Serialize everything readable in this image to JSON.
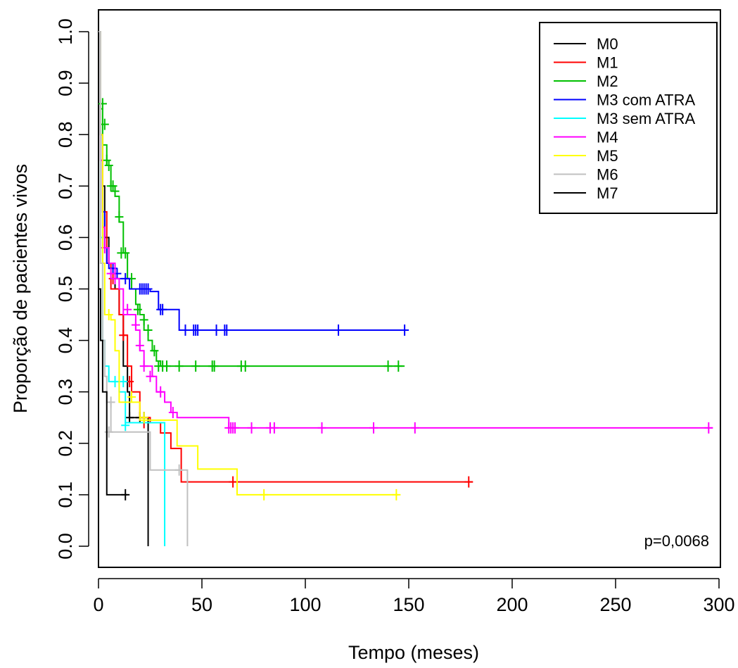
{
  "chart_data": {
    "type": "line",
    "subtype": "kaplan-meier",
    "title": "",
    "xlabel": "Tempo (meses)",
    "ylabel": "Proporção de pacientes vivos",
    "xlim": [
      0,
      300
    ],
    "ylim": [
      0,
      1
    ],
    "xticks": [
      "0",
      "50",
      "100",
      "150",
      "200",
      "250",
      "300"
    ],
    "xtick_values": [
      0,
      50,
      100,
      150,
      200,
      250,
      300
    ],
    "yticks": [
      "0.0",
      "0.1",
      "0.2",
      "0.3",
      "0.4",
      "0.5",
      "0.6",
      "0.7",
      "0.8",
      "0.9",
      "1.0"
    ],
    "ytick_values": [
      0,
      0.1,
      0.2,
      0.3,
      0.4,
      0.5,
      0.6,
      0.7,
      0.8,
      0.9,
      1.0
    ],
    "annotation": "p=0,0068",
    "legend_position": "top-right",
    "grid": false,
    "series": [
      {
        "name": "M0",
        "color": "#000000",
        "steps": [
          [
            0,
            1.0
          ],
          [
            1,
            0.8
          ],
          [
            2,
            0.7
          ],
          [
            3,
            0.6
          ],
          [
            5,
            0.55
          ],
          [
            8,
            0.5
          ],
          [
            10,
            0.45
          ],
          [
            12,
            0.35
          ],
          [
            14,
            0.3
          ],
          [
            15,
            0.25
          ],
          [
            24,
            0.25
          ],
          [
            24,
            0.0
          ]
        ],
        "censors": [
          [
            15,
            0.25
          ],
          [
            20,
            0.25
          ],
          [
            22,
            0.25
          ]
        ]
      },
      {
        "name": "M1",
        "color": "#ff0000",
        "steps": [
          [
            0,
            1.0
          ],
          [
            1,
            0.75
          ],
          [
            2,
            0.65
          ],
          [
            4,
            0.55
          ],
          [
            6,
            0.5
          ],
          [
            10,
            0.45
          ],
          [
            12,
            0.41
          ],
          [
            14,
            0.35
          ],
          [
            16,
            0.3
          ],
          [
            20,
            0.25
          ],
          [
            25,
            0.24
          ],
          [
            30,
            0.22
          ],
          [
            35,
            0.19
          ],
          [
            40,
            0.125
          ],
          [
            181,
            0.125
          ]
        ],
        "censors": [
          [
            7,
            0.52
          ],
          [
            12,
            0.41
          ],
          [
            15,
            0.32
          ],
          [
            22,
            0.24
          ],
          [
            65,
            0.125
          ],
          [
            179,
            0.125
          ]
        ]
      },
      {
        "name": "M2",
        "color": "#00c000",
        "steps": [
          [
            0,
            1.0
          ],
          [
            1,
            0.85
          ],
          [
            2,
            0.78
          ],
          [
            4,
            0.74
          ],
          [
            6,
            0.7
          ],
          [
            8,
            0.68
          ],
          [
            10,
            0.63
          ],
          [
            12,
            0.57
          ],
          [
            14,
            0.52
          ],
          [
            16,
            0.5
          ],
          [
            18,
            0.47
          ],
          [
            20,
            0.45
          ],
          [
            22,
            0.42
          ],
          [
            24,
            0.4
          ],
          [
            26,
            0.38
          ],
          [
            28,
            0.36
          ],
          [
            30,
            0.35
          ],
          [
            148,
            0.35
          ]
        ],
        "censors": [
          [
            2,
            0.86
          ],
          [
            3,
            0.82
          ],
          [
            4,
            0.75
          ],
          [
            5,
            0.74
          ],
          [
            6,
            0.7
          ],
          [
            7,
            0.7
          ],
          [
            8,
            0.69
          ],
          [
            10,
            0.64
          ],
          [
            11,
            0.57
          ],
          [
            13,
            0.57
          ],
          [
            16,
            0.52
          ],
          [
            19,
            0.46
          ],
          [
            22,
            0.44
          ],
          [
            24,
            0.42
          ],
          [
            27,
            0.38
          ],
          [
            29,
            0.35
          ],
          [
            31,
            0.35
          ],
          [
            33,
            0.35
          ],
          [
            39,
            0.35
          ],
          [
            47,
            0.35
          ],
          [
            55,
            0.35
          ],
          [
            56,
            0.35
          ],
          [
            69,
            0.35
          ],
          [
            71,
            0.35
          ],
          [
            140,
            0.35
          ],
          [
            145,
            0.35
          ]
        ]
      },
      {
        "name": "M3 com ATRA",
        "color": "#0000ff",
        "steps": [
          [
            0,
            1.0
          ],
          [
            1,
            0.8
          ],
          [
            2,
            0.65
          ],
          [
            3,
            0.58
          ],
          [
            4,
            0.55
          ],
          [
            5,
            0.54
          ],
          [
            8,
            0.52
          ],
          [
            15,
            0.5
          ],
          [
            25,
            0.495
          ],
          [
            29,
            0.46
          ],
          [
            32,
            0.46
          ],
          [
            34,
            0.46
          ],
          [
            38,
            0.46
          ],
          [
            39,
            0.42
          ],
          [
            150,
            0.42
          ]
        ],
        "censors": [
          [
            7,
            0.54
          ],
          [
            9,
            0.53
          ],
          [
            13,
            0.52
          ],
          [
            20,
            0.5
          ],
          [
            21,
            0.5
          ],
          [
            22,
            0.5
          ],
          [
            23,
            0.5
          ],
          [
            24,
            0.5
          ],
          [
            30,
            0.46
          ],
          [
            31,
            0.46
          ],
          [
            42,
            0.42
          ],
          [
            46,
            0.42
          ],
          [
            47,
            0.42
          ],
          [
            48,
            0.42
          ],
          [
            57,
            0.42
          ],
          [
            61,
            0.42
          ],
          [
            62,
            0.42
          ],
          [
            116,
            0.42
          ],
          [
            148,
            0.42
          ]
        ]
      },
      {
        "name": "M3 sem ATRA",
        "color": "#00ffff",
        "steps": [
          [
            0,
            1.0
          ],
          [
            1,
            0.6
          ],
          [
            2,
            0.4
          ],
          [
            3,
            0.35
          ],
          [
            5,
            0.32
          ],
          [
            10,
            0.3
          ],
          [
            13,
            0.24
          ],
          [
            32,
            0.24
          ],
          [
            32,
            0.0
          ]
        ],
        "censors": [
          [
            8,
            0.32
          ],
          [
            12,
            0.32
          ],
          [
            13,
            0.235
          ]
        ]
      },
      {
        "name": "M4",
        "color": "#ff00ff",
        "steps": [
          [
            0,
            1.0
          ],
          [
            1,
            0.75
          ],
          [
            2,
            0.62
          ],
          [
            3,
            0.58
          ],
          [
            5,
            0.55
          ],
          [
            8,
            0.52
          ],
          [
            10,
            0.5
          ],
          [
            12,
            0.45
          ],
          [
            15,
            0.45
          ],
          [
            18,
            0.42
          ],
          [
            20,
            0.38
          ],
          [
            22,
            0.35
          ],
          [
            26,
            0.33
          ],
          [
            28,
            0.3
          ],
          [
            32,
            0.28
          ],
          [
            35,
            0.26
          ],
          [
            38,
            0.25
          ],
          [
            62,
            0.25
          ],
          [
            63,
            0.23
          ],
          [
            297,
            0.23
          ]
        ],
        "censors": [
          [
            3,
            0.58
          ],
          [
            6,
            0.53
          ],
          [
            8,
            0.52
          ],
          [
            14,
            0.46
          ],
          [
            18,
            0.43
          ],
          [
            20,
            0.39
          ],
          [
            22,
            0.35
          ],
          [
            25,
            0.33
          ],
          [
            30,
            0.3
          ],
          [
            36,
            0.26
          ],
          [
            63,
            0.23
          ],
          [
            64,
            0.23
          ],
          [
            65,
            0.23
          ],
          [
            66,
            0.23
          ],
          [
            74,
            0.23
          ],
          [
            83,
            0.23
          ],
          [
            85,
            0.23
          ],
          [
            108,
            0.23
          ],
          [
            133,
            0.23
          ],
          [
            153,
            0.23
          ],
          [
            295,
            0.23
          ]
        ]
      },
      {
        "name": "M5",
        "color": "#ffff00",
        "steps": [
          [
            0,
            1.0
          ],
          [
            1,
            0.8
          ],
          [
            2,
            0.55
          ],
          [
            3,
            0.45
          ],
          [
            6,
            0.44
          ],
          [
            8,
            0.38
          ],
          [
            10,
            0.28
          ],
          [
            15,
            0.28
          ],
          [
            20,
            0.245
          ],
          [
            38,
            0.245
          ],
          [
            38,
            0.195
          ],
          [
            48,
            0.195
          ],
          [
            48,
            0.15
          ],
          [
            67,
            0.15
          ],
          [
            67,
            0.1
          ],
          [
            145,
            0.1
          ]
        ],
        "censors": [
          [
            5,
            0.45
          ],
          [
            16,
            0.29
          ],
          [
            22,
            0.25
          ],
          [
            80,
            0.1
          ],
          [
            144,
            0.1
          ]
        ]
      },
      {
        "name": "M6",
        "color": "#c0c0c0",
        "steps": [
          [
            0,
            1.0
          ],
          [
            1,
            0.55
          ],
          [
            2,
            0.4
          ],
          [
            3,
            0.33
          ],
          [
            4,
            0.28
          ],
          [
            6,
            0.222
          ],
          [
            25,
            0.222
          ],
          [
            25,
            0.148
          ],
          [
            40,
            0.148
          ],
          [
            43,
            0.148
          ],
          [
            43,
            0.0
          ]
        ],
        "censors": [
          [
            5,
            0.222
          ],
          [
            6,
            0.28
          ],
          [
            39,
            0.148
          ]
        ]
      },
      {
        "name": "M7",
        "color": "#000000",
        "steps": [
          [
            0,
            0.5
          ],
          [
            1,
            0.4
          ],
          [
            2,
            0.3
          ],
          [
            4,
            0.1
          ],
          [
            14,
            0.1
          ]
        ],
        "censors": [
          [
            13,
            0.1
          ]
        ]
      }
    ]
  }
}
